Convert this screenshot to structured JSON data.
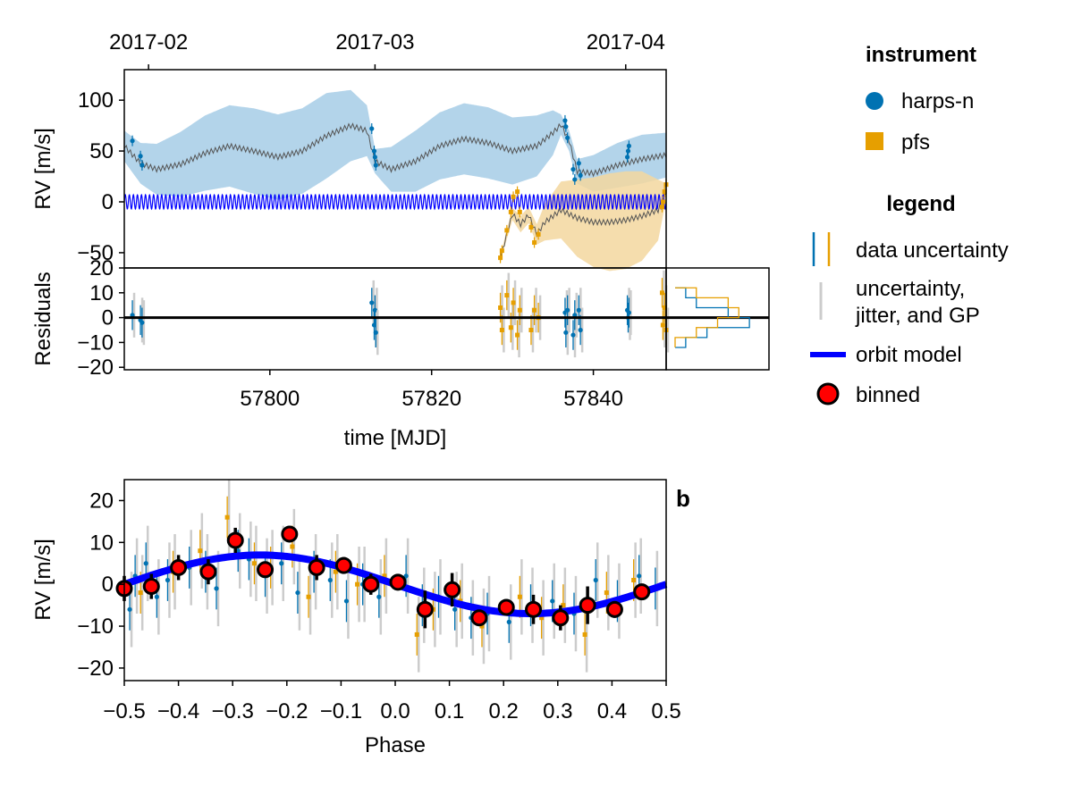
{
  "colors": {
    "harps": "#0072b2",
    "pfs": "#e69f00",
    "orbit": "#0000ff",
    "binned_fill": "#ff0000",
    "gp_band_harps": "#a6cde6",
    "gp_band_pfs": "#f3d79f",
    "gp_line": "#555555",
    "jitter": "#cccccc"
  },
  "legend": {
    "instrument_title": "instrument",
    "instrument_items": [
      "harps-n",
      "pfs"
    ],
    "legend_title": "legend",
    "items": {
      "data_uncertainty": "data uncertainty",
      "uncertainty_jitter_line1": "uncertainty,",
      "uncertainty_jitter_line2": "jitter, and GP",
      "orbit_model": "orbit model",
      "binned": "binned"
    }
  },
  "panel_label_b": "b",
  "chart_data": [
    {
      "type": "scatter",
      "panel": "rv-vs-time",
      "ylabel": "RV [m/s]",
      "xlim": [
        57782,
        57849
      ],
      "ylim": [
        -65,
        130
      ],
      "yticks": [
        -50,
        0,
        50,
        100
      ],
      "top_axis_ticks": [
        {
          "label": "2017-02",
          "mjd": 57785
        },
        {
          "label": "2017-03",
          "mjd": 57813
        },
        {
          "label": "2017-04",
          "mjd": 57844
        }
      ],
      "series": [
        {
          "name": "harps-n",
          "x": [
            57783,
            57784,
            57784.2,
            57812.6,
            57812.9,
            57813.0,
            57813.1,
            57836.5,
            57836.6,
            57836.8,
            57837.5,
            57837.7,
            57838.2,
            57838.4,
            57844.2,
            57844.3,
            57844.4
          ],
          "y": [
            60,
            45,
            36,
            72,
            50,
            44,
            36,
            80,
            74,
            63,
            32,
            22,
            38,
            26,
            44,
            50,
            55
          ]
        },
        {
          "name": "pfs",
          "x": [
            57828.5,
            57828.7,
            57829.3,
            57829.8,
            57830.1,
            57830.6,
            57830.9,
            57832.3,
            57832.7,
            57833.2,
            57848.5,
            57848.6,
            57848.8,
            57849.0
          ],
          "y": [
            -55,
            -48,
            -28,
            -10,
            5,
            10,
            -10,
            -25,
            -40,
            -32,
            -5,
            0,
            10,
            17
          ]
        }
      ],
      "models": [
        {
          "name": "GP mean harps-n",
          "x": [
            57782,
            57784,
            57786,
            57789,
            57792,
            57795,
            57798,
            57801,
            57804,
            57807,
            57810,
            57812,
            57813,
            57815,
            57818,
            57821,
            57824,
            57827,
            57830,
            57833,
            57835,
            57836,
            57837,
            57838,
            57840,
            57843,
            57846,
            57849
          ],
          "y": [
            55,
            38,
            32,
            37,
            48,
            55,
            50,
            44,
            50,
            65,
            75,
            70,
            40,
            32,
            40,
            55,
            62,
            58,
            50,
            55,
            68,
            76,
            60,
            30,
            28,
            36,
            42,
            46
          ],
          "band_halfwidth": [
            15,
            20,
            25,
            32,
            37,
            40,
            42,
            42,
            42,
            42,
            35,
            25,
            12,
            22,
            30,
            33,
            35,
            35,
            33,
            30,
            22,
            10,
            10,
            12,
            18,
            22,
            24,
            22
          ]
        },
        {
          "name": "GP mean pfs",
          "x": [
            57828.5,
            57830,
            57831,
            57832,
            57833,
            57834,
            57836,
            57838,
            57840,
            57842,
            57844,
            57846,
            57848,
            57849
          ],
          "y": [
            -55,
            -12,
            -22,
            -13,
            -32,
            -20,
            -8,
            -16,
            -20,
            -20,
            -18,
            -14,
            -8,
            10
          ],
          "band_halfwidth": [
            3,
            6,
            8,
            8,
            10,
            18,
            28,
            38,
            44,
            48,
            48,
            44,
            30,
            8
          ]
        }
      ],
      "orbit_model": {
        "amplitude": 7,
        "period_days": 0.5,
        "offset": 0
      }
    },
    {
      "type": "scatter",
      "panel": "residuals-vs-time",
      "xlabel": "time [MJD]",
      "ylabel": "Residuals",
      "xlim": [
        57782,
        57849
      ],
      "ylim": [
        -21,
        20
      ],
      "yticks": [
        -20,
        -10,
        0,
        10,
        20
      ],
      "xticks": [
        57800,
        57820,
        57840
      ],
      "series": [
        {
          "name": "harps-n",
          "x": [
            57783,
            57784,
            57784.2,
            57812.6,
            57812.9,
            57813.0,
            57813.1,
            57836.5,
            57836.6,
            57836.8,
            57837.5,
            57837.7,
            57838.2,
            57838.4,
            57844.2,
            57844.3,
            57844.4
          ],
          "y": [
            1,
            -1,
            -2,
            6,
            -3,
            3,
            -6,
            2,
            -6,
            3,
            -7,
            1,
            3,
            -5,
            3,
            0,
            2
          ]
        },
        {
          "name": "pfs",
          "x": [
            57828.5,
            57828.7,
            57829.3,
            57829.8,
            57830.1,
            57830.6,
            57830.9,
            57832.3,
            57832.7,
            57833.2,
            57848.5,
            57848.6,
            57848.8,
            57849.0
          ],
          "y": [
            4,
            -5,
            9,
            -4,
            6,
            -7,
            3,
            -5,
            3,
            0,
            10,
            -3,
            4,
            -5
          ]
        }
      ]
    },
    {
      "type": "histogram",
      "panel": "residual-histogram",
      "orientation": "horizontal",
      "ylim": [
        -21,
        20
      ],
      "bin_edges": [
        -12,
        -8,
        -4,
        0,
        4,
        8,
        12
      ],
      "series": [
        {
          "name": "harps-n",
          "counts": [
            1,
            3,
            7,
            5,
            2,
            1
          ]
        },
        {
          "name": "pfs",
          "counts": [
            0,
            2,
            4,
            6,
            5,
            2
          ]
        }
      ]
    },
    {
      "type": "scatter",
      "panel": "rv-vs-phase",
      "xlabel": "Phase",
      "ylabel": "RV [m/s]",
      "xlim": [
        -0.5,
        0.5
      ],
      "ylim": [
        -23,
        25
      ],
      "xticks": [
        -0.5,
        -0.4,
        -0.3,
        -0.2,
        -0.1,
        0.0,
        0.1,
        0.2,
        0.3,
        0.4,
        0.5
      ],
      "xtick_labels": [
        "−0.5",
        "−0.4",
        "−0.3",
        "−0.2",
        "−0.1",
        "0.0",
        "0.1",
        "0.2",
        "0.3",
        "0.4",
        "0.5"
      ],
      "yticks": [
        -20,
        -10,
        0,
        10,
        20
      ],
      "series": [
        {
          "name": "harps-n",
          "x": [
            -0.49,
            -0.48,
            -0.46,
            -0.44,
            -0.42,
            -0.38,
            -0.35,
            -0.33,
            -0.29,
            -0.27,
            -0.24,
            -0.21,
            -0.18,
            -0.15,
            -0.12,
            -0.09,
            -0.06,
            -0.03,
            0.02,
            0.05,
            0.08,
            0.11,
            0.14,
            0.17,
            0.21,
            0.25,
            0.29,
            0.33,
            0.37,
            0.41,
            0.45,
            0.48
          ],
          "y": [
            -6,
            2,
            5,
            -3,
            1,
            4,
            3,
            -1,
            8,
            6,
            2,
            5,
            -2,
            3,
            1,
            -4,
            0,
            -3,
            2,
            -5,
            -3,
            -6,
            -8,
            -7,
            -9,
            -5,
            -4,
            -7,
            1,
            -4,
            2,
            -1
          ]
        },
        {
          "name": "pfs",
          "x": [
            -0.47,
            -0.41,
            -0.36,
            -0.31,
            -0.26,
            -0.23,
            -0.19,
            -0.16,
            -0.11,
            -0.07,
            -0.02,
            0.04,
            0.07,
            0.12,
            0.16,
            0.23,
            0.27,
            0.31,
            0.35,
            0.39,
            0.44
          ],
          "y": [
            -2,
            3,
            8,
            16,
            5,
            4,
            9,
            -3,
            3,
            0,
            2,
            -12,
            -6,
            -4,
            -10,
            -3,
            -8,
            -5,
            -12,
            -2,
            1
          ]
        }
      ],
      "binned": {
        "x": [
          -0.5,
          -0.45,
          -0.4,
          -0.345,
          -0.295,
          -0.24,
          -0.195,
          -0.145,
          -0.095,
          -0.045,
          0.005,
          0.055,
          0.105,
          0.155,
          0.205,
          0.255,
          0.305,
          0.355,
          0.405,
          0.455
        ],
        "y": [
          -1,
          -0.5,
          4,
          3,
          10.5,
          3.5,
          12,
          4,
          4.5,
          0,
          0.5,
          -6,
          -1.3,
          -8,
          -5.5,
          -6,
          -8,
          -5,
          -6,
          -1.8
        ],
        "err": [
          3,
          3,
          3,
          3,
          3,
          1.5,
          1,
          3,
          2,
          2.5,
          1.5,
          4.5,
          4,
          1,
          1,
          3.5,
          3,
          4.5,
          2,
          1.5
        ]
      },
      "orbit_model": {
        "amplitude": 7,
        "phase_of_max": -0.25,
        "offset": 0
      }
    }
  ]
}
